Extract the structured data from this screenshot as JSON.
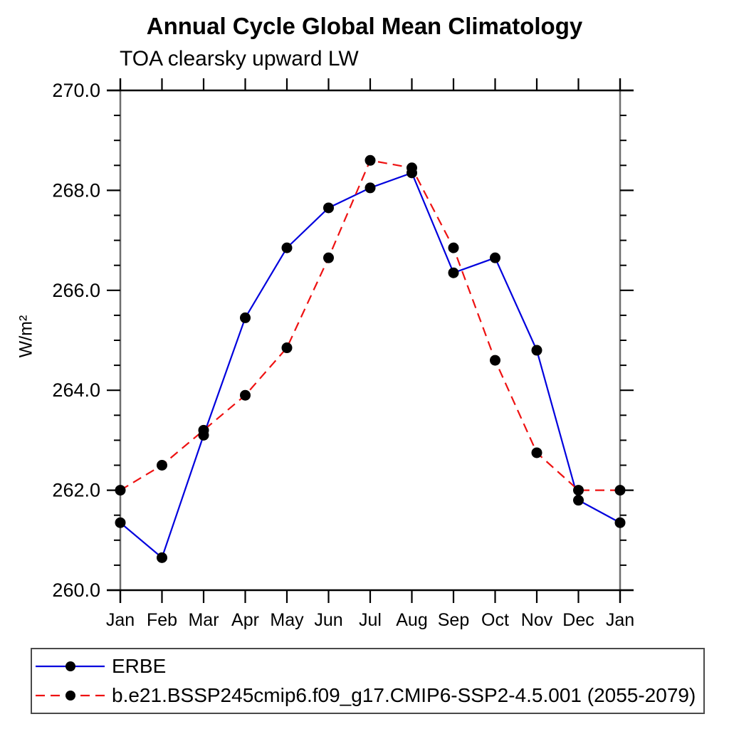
{
  "chart_data": {
    "type": "line",
    "title": "Annual Cycle Global Mean Climatology",
    "subtitle": "TOA clearsky upward LW",
    "ylabel": "W/m²",
    "xlabel": "",
    "categories": [
      "Jan",
      "Feb",
      "Mar",
      "Apr",
      "May",
      "Jun",
      "Jul",
      "Aug",
      "Sep",
      "Oct",
      "Nov",
      "Dec",
      "Jan"
    ],
    "ylim": [
      260.0,
      270.0
    ],
    "ytick_major": [
      260.0,
      262.0,
      264.0,
      266.0,
      268.0,
      270.0
    ],
    "ytick_labels": [
      "260.0",
      "262.0",
      "264.0",
      "266.0",
      "268.0",
      "270.0"
    ],
    "ytick_minor_step": 0.5,
    "grid": false,
    "legend_position": "bottom-left",
    "series": [
      {
        "name": "ERBE",
        "color": "#0000dd",
        "line_style": "solid",
        "marker": "circle",
        "marker_color": "#000000",
        "values": [
          261.35,
          260.65,
          263.1,
          265.45,
          266.85,
          267.65,
          268.05,
          268.35,
          266.35,
          266.65,
          264.8,
          261.8,
          261.35
        ]
      },
      {
        "name": "b.e21.BSSP245cmip6.f09_g17.CMIP6-SSP2-4.5.001 (2055-2079)",
        "color": "#ee1111",
        "line_style": "dashed",
        "marker": "circle",
        "marker_color": "#000000",
        "values": [
          262.0,
          262.5,
          263.2,
          263.9,
          264.85,
          266.65,
          268.6,
          268.45,
          266.85,
          264.6,
          262.75,
          262.0,
          262.0
        ]
      }
    ]
  }
}
